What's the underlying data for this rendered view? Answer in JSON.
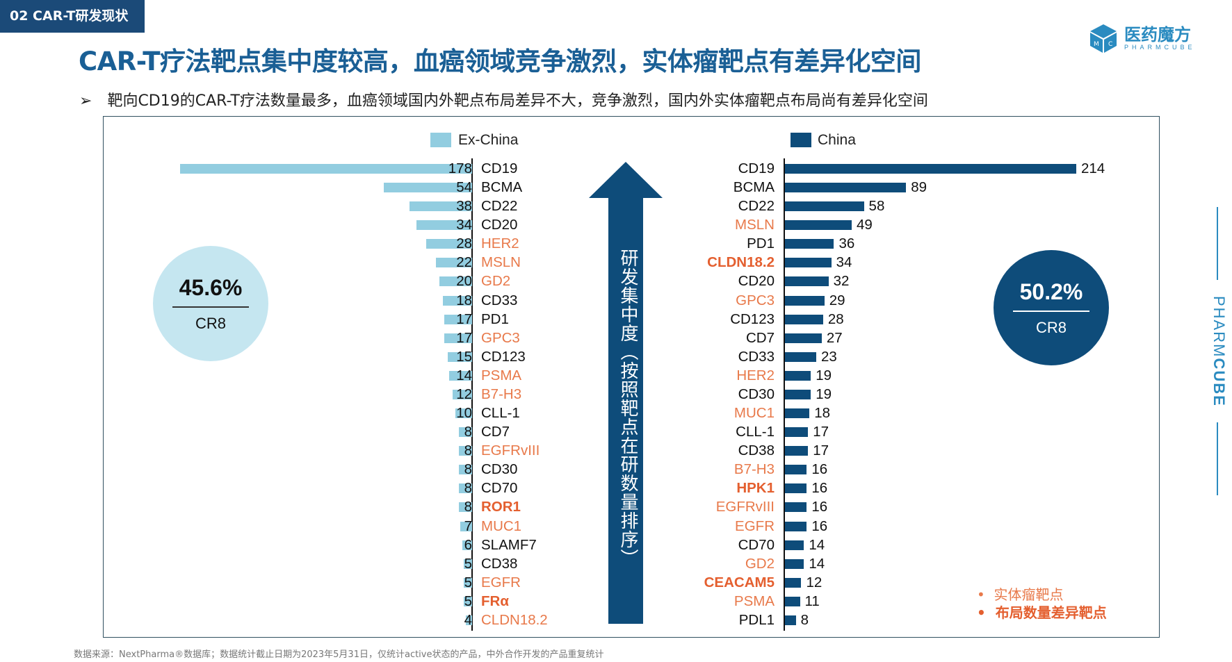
{
  "header": {
    "section_tag": "02 CAR-T研发现状",
    "title": "CAR-T疗法靶点集中度较高，血癌领域竞争激烈，实体瘤靶点有差异化空间",
    "bullet_icon": "arrow-bullet-icon",
    "bullet_glyph": "➢",
    "subtitle": "靶向CD19的CAR-T疗法数量最多，血癌领域国内外靶点布局差异不大，竞争激烈，国内外实体瘤靶点布局尚有差异化空间"
  },
  "logo": {
    "cn": "医药魔方",
    "en": "PHARMCUBE",
    "cube_letters": "MC"
  },
  "side_brand": {
    "light": "PHARM",
    "bold": "CUBE"
  },
  "colors": {
    "ex_china": "#92cde0",
    "china": "#0e4c7a",
    "solid_tumor": "#e8794a",
    "differential": "#e45f2f",
    "title": "#1a5f95",
    "tag": "#1b4a78"
  },
  "chart_data": {
    "type": "bar",
    "arrow_label": "研发集中度（按照靶点在研数量排序）",
    "series": [
      {
        "name": "Ex-China",
        "cr8": "45.6%",
        "cr8_label": "CR8",
        "categories": [
          "CD19",
          "BCMA",
          "CD22",
          "CD20",
          "HER2",
          "MSLN",
          "GD2",
          "CD33",
          "PD1",
          "GPC3",
          "CD123",
          "PSMA",
          "B7-H3",
          "CLL-1",
          "CD7",
          "EGFRvIII",
          "CD30",
          "CD70",
          "ROR1",
          "MUC1",
          "SLAMF7",
          "CD38",
          "EGFR",
          "FRα",
          "CLDN18.2"
        ],
        "values": [
          178,
          54,
          38,
          34,
          28,
          22,
          20,
          18,
          17,
          17,
          15,
          14,
          12,
          10,
          8,
          8,
          8,
          8,
          8,
          7,
          6,
          5,
          5,
          5,
          4
        ],
        "types": [
          "n",
          "n",
          "n",
          "n",
          "s",
          "s",
          "s",
          "n",
          "n",
          "s",
          "n",
          "s",
          "s",
          "n",
          "n",
          "s",
          "n",
          "n",
          "d",
          "s",
          "n",
          "n",
          "s",
          "d",
          "s"
        ]
      },
      {
        "name": "China",
        "cr8": "50.2%",
        "cr8_label": "CR8",
        "categories": [
          "CD19",
          "BCMA",
          "CD22",
          "MSLN",
          "PD1",
          "CLDN18.2",
          "CD20",
          "GPC3",
          "CD123",
          "CD7",
          "CD33",
          "HER2",
          "CD30",
          "MUC1",
          "CLL-1",
          "CD38",
          "B7-H3",
          "HPK1",
          "EGFRvIII",
          "EGFR",
          "CD70",
          "GD2",
          "CEACAM5",
          "PSMA",
          "PDL1"
        ],
        "values": [
          214,
          89,
          58,
          49,
          36,
          34,
          32,
          29,
          28,
          27,
          23,
          19,
          19,
          18,
          17,
          17,
          16,
          16,
          16,
          16,
          14,
          14,
          12,
          11,
          8
        ],
        "types": [
          "n",
          "n",
          "n",
          "s",
          "n",
          "d",
          "n",
          "s",
          "n",
          "n",
          "n",
          "s",
          "n",
          "s",
          "n",
          "n",
          "s",
          "d",
          "s",
          "s",
          "n",
          "s",
          "d",
          "s",
          "n"
        ]
      }
    ],
    "legend_notes": [
      "实体瘤靶点",
      "布局数量差异靶点"
    ],
    "note_bullet": "•"
  },
  "footnote": "数据来源：NextPharma®数据库；数据统计截止日期为2023年5月31日，仅统计active状态的产品，中外合作开发的产品重复统计"
}
